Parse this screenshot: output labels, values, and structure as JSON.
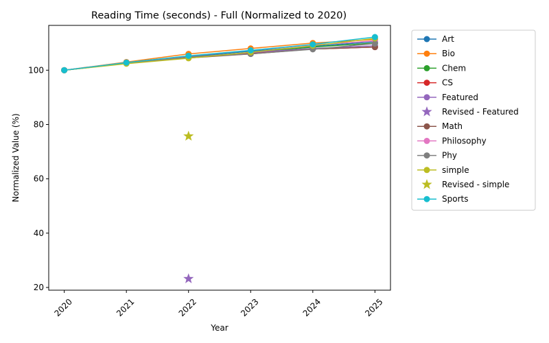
{
  "chart_data": {
    "type": "line",
    "title": "Reading Time (seconds) - Full (Normalized to 2020)",
    "xlabel": "Year",
    "ylabel": "Normalized Value (%)",
    "x": [
      2020,
      2021,
      2022,
      2023,
      2024,
      2025
    ],
    "x_tick_labels": [
      "2020",
      "2021",
      "2022",
      "2023",
      "2024",
      "2025"
    ],
    "y_ticks": [
      20,
      40,
      60,
      80,
      100
    ],
    "y_tick_labels": [
      "20",
      "40",
      "60",
      "80",
      "100"
    ],
    "ylim": [
      19,
      116.5
    ],
    "xlim": [
      2019.75,
      2025.25
    ],
    "grid": false,
    "legend_placement": "outside-right",
    "series": [
      {
        "name": "Art",
        "kind": "line",
        "color": "#1f77b4",
        "values": [
          100,
          102.8,
          105.0,
          107.0,
          108.8,
          110.5
        ]
      },
      {
        "name": "Bio",
        "kind": "line",
        "color": "#ff7f0e",
        "values": [
          100,
          103.0,
          106.0,
          108.0,
          110.0,
          111.3
        ]
      },
      {
        "name": "Chem",
        "kind": "line",
        "color": "#2ca02c",
        "values": [
          100,
          102.5,
          104.8,
          106.5,
          108.5,
          110.0
        ]
      },
      {
        "name": "CS",
        "kind": "line",
        "color": "#d62728",
        "values": [
          100,
          102.6,
          104.6,
          106.2,
          107.8,
          108.5
        ]
      },
      {
        "name": "Featured",
        "kind": "line",
        "color": "#9467bd",
        "values": [
          100,
          102.7,
          104.7,
          106.5,
          108.0,
          109.0
        ]
      },
      {
        "name": "Revised - Featured",
        "kind": "star",
        "color": "#9467bd",
        "points": [
          [
            2022,
            23.2
          ]
        ]
      },
      {
        "name": "Math",
        "kind": "line",
        "color": "#8c564b",
        "values": [
          100,
          102.6,
          104.5,
          106.0,
          107.8,
          108.5
        ]
      },
      {
        "name": "Philosophy",
        "kind": "line",
        "color": "#e377c2",
        "values": [
          100,
          102.8,
          105.2,
          107.3,
          109.3,
          110.8
        ]
      },
      {
        "name": "Phy",
        "kind": "line",
        "color": "#7f7f7f",
        "values": [
          100,
          102.6,
          104.8,
          106.0,
          107.7,
          109.8
        ]
      },
      {
        "name": "simple",
        "kind": "line",
        "color": "#bcbd22",
        "values": [
          100,
          102.4,
          104.4,
          106.6,
          109.0,
          111.7
        ]
      },
      {
        "name": "Revised - simple",
        "kind": "star",
        "color": "#bcbd22",
        "points": [
          [
            2022,
            75.7
          ]
        ]
      },
      {
        "name": "Sports",
        "kind": "line",
        "color": "#17becf",
        "values": [
          100,
          102.8,
          105.3,
          107.3,
          109.5,
          112.2
        ]
      }
    ]
  }
}
